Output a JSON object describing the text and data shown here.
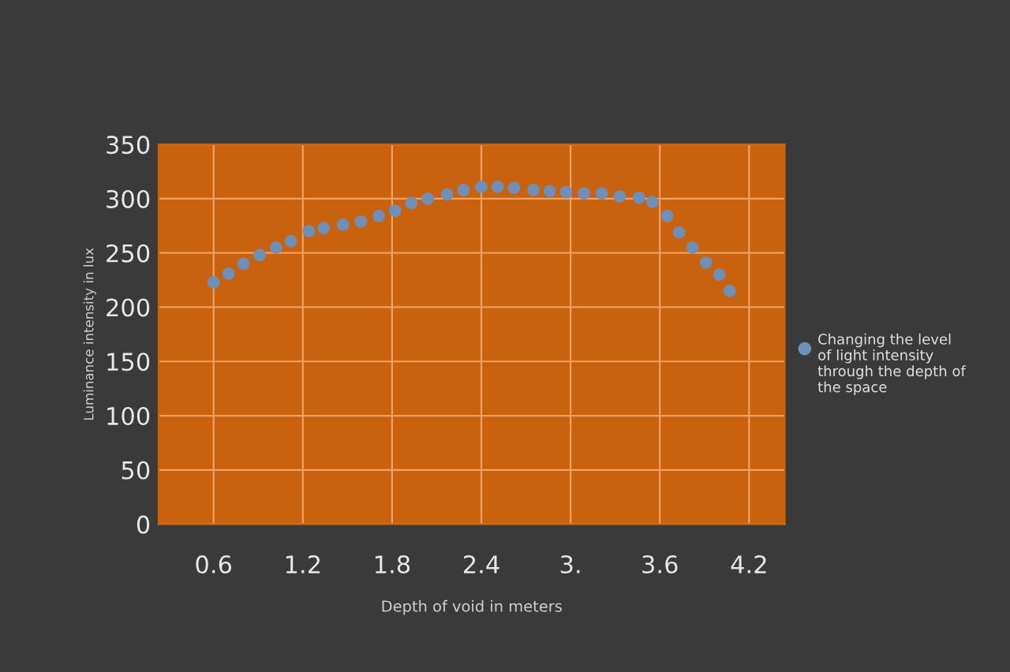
{
  "chart_data": {
    "type": "scatter",
    "xlabel": "Depth of void in meters",
    "ylabel": "Luminance intensity in lux",
    "xlim": [
      0.23,
      4.44
    ],
    "xticks": [
      0.6,
      1.2,
      1.8,
      2.4,
      {
        "value": 3,
        "label": "3."
      },
      3.6,
      4.2
    ],
    "ylim": [
      0,
      350
    ],
    "yticks": [
      0,
      50,
      100,
      150,
      200,
      250,
      300,
      350
    ],
    "grid": true,
    "marker": "circle",
    "legend": "right",
    "series": [
      {
        "name": "Changing the level of light intensity through the depth of the space",
        "color": "#6f8fb8",
        "x": [
          0.6,
          0.7,
          0.8,
          0.91,
          1.02,
          1.12,
          1.24,
          1.34,
          1.47,
          1.59,
          1.71,
          1.82,
          1.93,
          2.04,
          2.17,
          2.28,
          2.4,
          2.51,
          2.62,
          2.75,
          2.86,
          2.97,
          3.09,
          3.21,
          3.33,
          3.46,
          3.55,
          3.65,
          3.73,
          3.82,
          3.91,
          4.0,
          4.07
        ],
        "values": [
          223,
          231,
          240,
          248,
          255,
          261,
          270,
          273,
          276,
          279,
          284,
          289,
          296,
          300,
          304,
          308,
          311,
          311,
          310,
          308,
          307,
          306,
          305,
          305,
          302,
          301,
          297,
          284,
          269,
          255,
          241,
          230,
          215
        ]
      }
    ]
  }
}
